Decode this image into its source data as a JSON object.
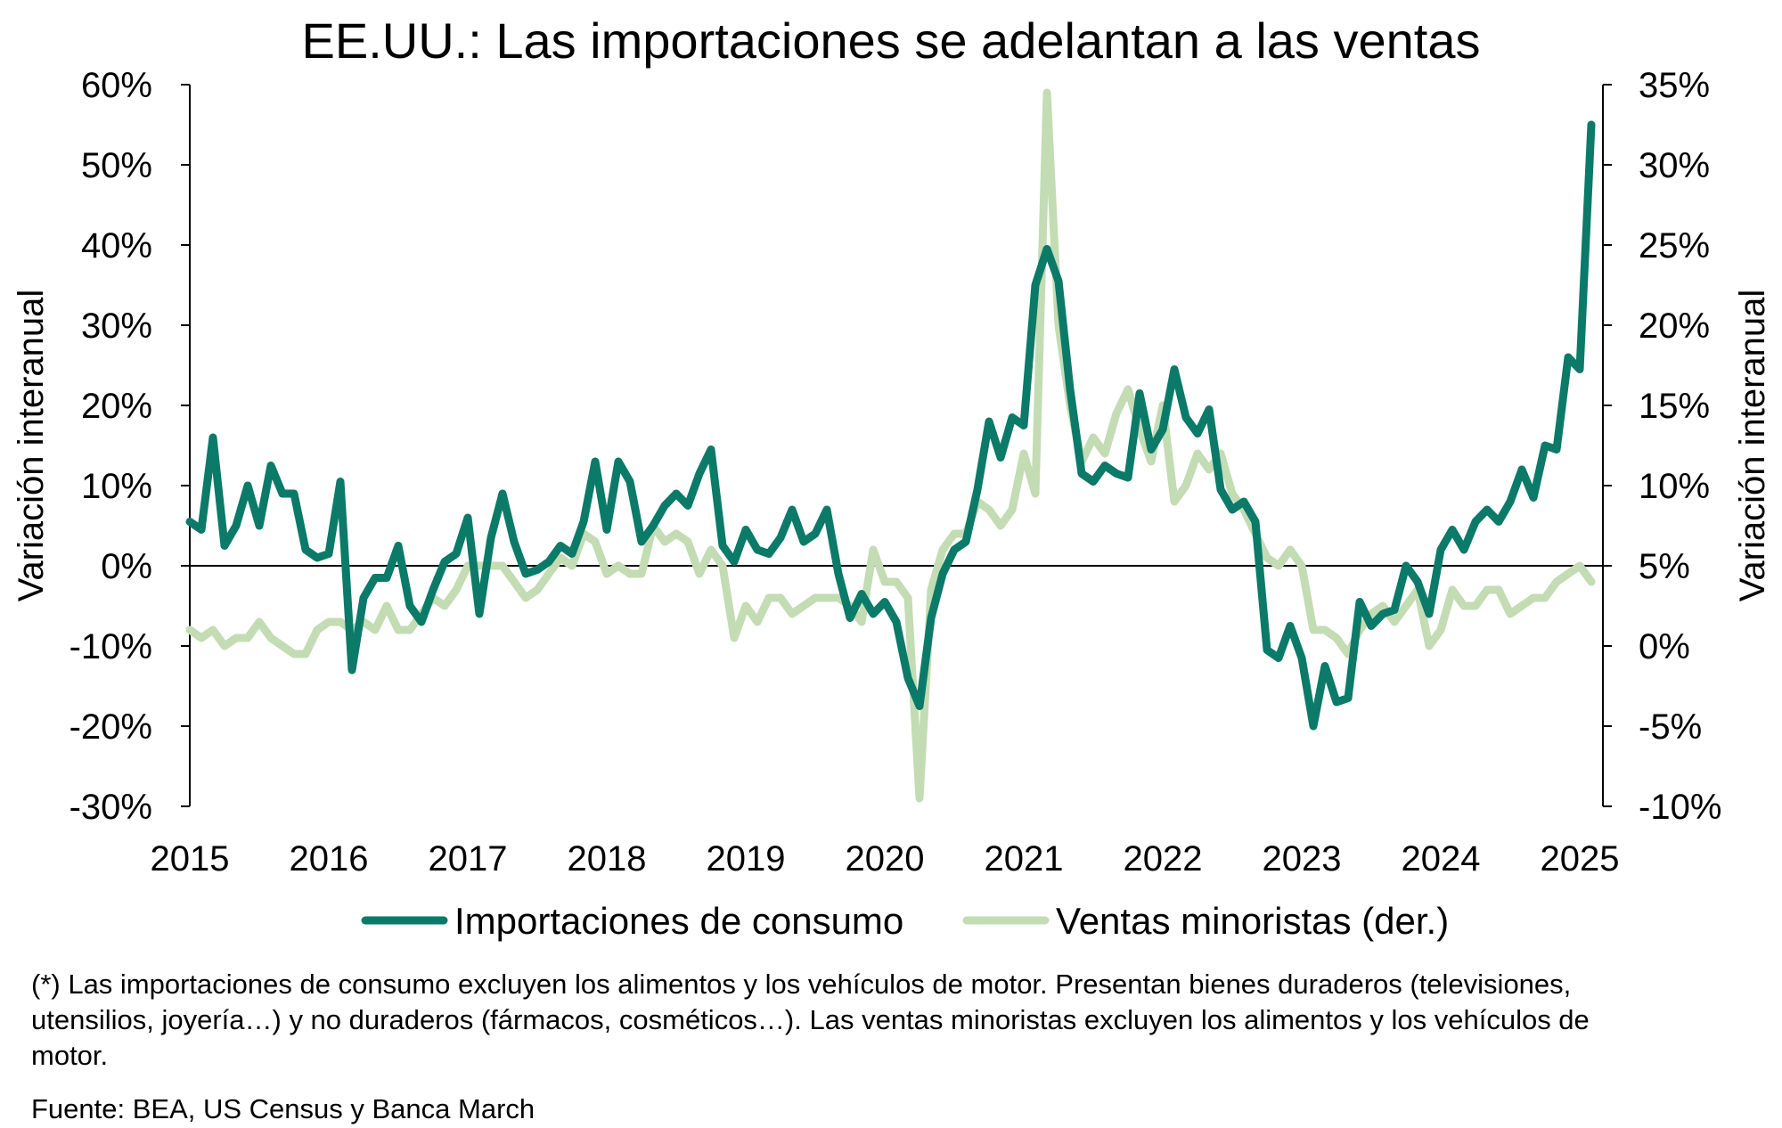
{
  "chart_data": {
    "type": "line",
    "title": "EE.UU.: Las importaciones se adelantan a las ventas",
    "ylabel_left": "Variación interanual",
    "ylabel_right": "Variación interanual",
    "ylim_left": [
      -30,
      60
    ],
    "ylim_right": [
      -10,
      35
    ],
    "yticks_left": [
      "60%",
      "50%",
      "40%",
      "30%",
      "20%",
      "10%",
      "0%",
      "-10%",
      "-20%",
      "-30%"
    ],
    "yticks_right": [
      "35%",
      "30%",
      "25%",
      "20%",
      "15%",
      "10%",
      "5%",
      "0%",
      "-5%",
      "-10%"
    ],
    "x_start": "2015-01",
    "x_end": "2025-03",
    "xticks": [
      "2015",
      "2016",
      "2017",
      "2018",
      "2019",
      "2020",
      "2021",
      "2022",
      "2023",
      "2024",
      "2025"
    ],
    "series": [
      {
        "name": "Importaciones de consumo",
        "axis": "left",
        "color": "#0b7a68",
        "values": [
          5.5,
          4.5,
          16.0,
          2.5,
          5.0,
          10.0,
          5.0,
          12.5,
          9.0,
          9.0,
          2.0,
          1.0,
          1.5,
          10.5,
          -13.0,
          -4.0,
          -1.5,
          -1.5,
          2.5,
          -5.0,
          -7.0,
          -3.0,
          0.5,
          1.5,
          6.0,
          -6.0,
          3.5,
          9.0,
          3.0,
          -1.0,
          -0.5,
          0.5,
          2.5,
          1.5,
          5.5,
          13.0,
          4.5,
          13.0,
          10.5,
          3.0,
          5.0,
          7.5,
          9.0,
          7.5,
          11.5,
          14.5,
          2.5,
          0.5,
          4.5,
          2.0,
          1.5,
          3.5,
          7.0,
          3.0,
          4.0,
          7.0,
          -1.0,
          -6.5,
          -3.5,
          -6.0,
          -4.5,
          -7.0,
          -14.0,
          -17.5,
          -6.5,
          -1.0,
          2.0,
          3.0,
          9.5,
          18.0,
          13.5,
          18.5,
          17.5,
          35.0,
          39.5,
          35.5,
          22.0,
          11.5,
          10.5,
          12.5,
          11.5,
          11.0,
          21.5,
          14.5,
          17.0,
          24.5,
          18.5,
          16.5,
          19.5,
          9.5,
          7.0,
          8.0,
          5.5,
          -10.5,
          -11.5,
          -7.5,
          -11.5,
          -20.0,
          -12.5,
          -17.0,
          -16.5,
          -4.5,
          -7.5,
          -6.0,
          -5.5,
          0.0,
          -2.0,
          -6.0,
          2.0,
          4.5,
          2.0,
          5.5,
          7.0,
          5.5,
          8.0,
          12.0,
          8.5,
          15.0,
          14.5,
          26.0,
          24.5,
          55.0
        ]
      },
      {
        "name": "Ventas minoristas (der.)",
        "axis": "right",
        "color": "#c3dcb4",
        "values": [
          1.0,
          0.5,
          1.0,
          0.0,
          0.5,
          0.5,
          1.5,
          0.5,
          0.0,
          -0.5,
          -0.5,
          1.0,
          1.5,
          1.5,
          1.0,
          1.5,
          1.0,
          2.5,
          1.0,
          1.0,
          2.0,
          3.0,
          2.5,
          3.5,
          5.0,
          5.0,
          5.0,
          5.0,
          4.0,
          3.0,
          3.5,
          4.5,
          5.5,
          5.0,
          7.0,
          6.5,
          4.5,
          5.0,
          4.5,
          4.5,
          7.5,
          6.5,
          7.0,
          6.5,
          4.5,
          6.0,
          5.0,
          0.5,
          2.5,
          1.5,
          3.0,
          3.0,
          2.0,
          2.5,
          3.0,
          3.0,
          3.0,
          2.5,
          1.5,
          6.0,
          4.0,
          4.0,
          3.0,
          -9.5,
          3.5,
          6.0,
          7.0,
          7.0,
          9.0,
          8.5,
          7.5,
          8.5,
          12.0,
          9.5,
          34.5,
          20.0,
          15.0,
          11.5,
          13.0,
          12.0,
          14.5,
          16.0,
          13.5,
          11.5,
          15.0,
          9.0,
          10.0,
          12.0,
          11.0,
          12.0,
          9.5,
          8.5,
          7.0,
          5.5,
          5.0,
          6.0,
          5.0,
          1.0,
          1.0,
          0.5,
          -0.5,
          1.0,
          2.0,
          2.5,
          1.5,
          2.5,
          3.5,
          0.0,
          1.0,
          3.5,
          2.5,
          2.5,
          3.5,
          3.5,
          2.0,
          2.5,
          3.0,
          3.0,
          4.0,
          4.5,
          5.0,
          4.0
        ]
      }
    ]
  },
  "note": "(*) Las importaciones de consumo excluyen los alimentos y los vehículos de motor. Presentan bienes duraderos (televisiones, utensilios, joyería…) y no duraderos (fármacos, cosméticos…). Las ventas minoristas excluyen los alimentos y los vehículos de motor.",
  "source": "Fuente: BEA, US Census y Banca March"
}
